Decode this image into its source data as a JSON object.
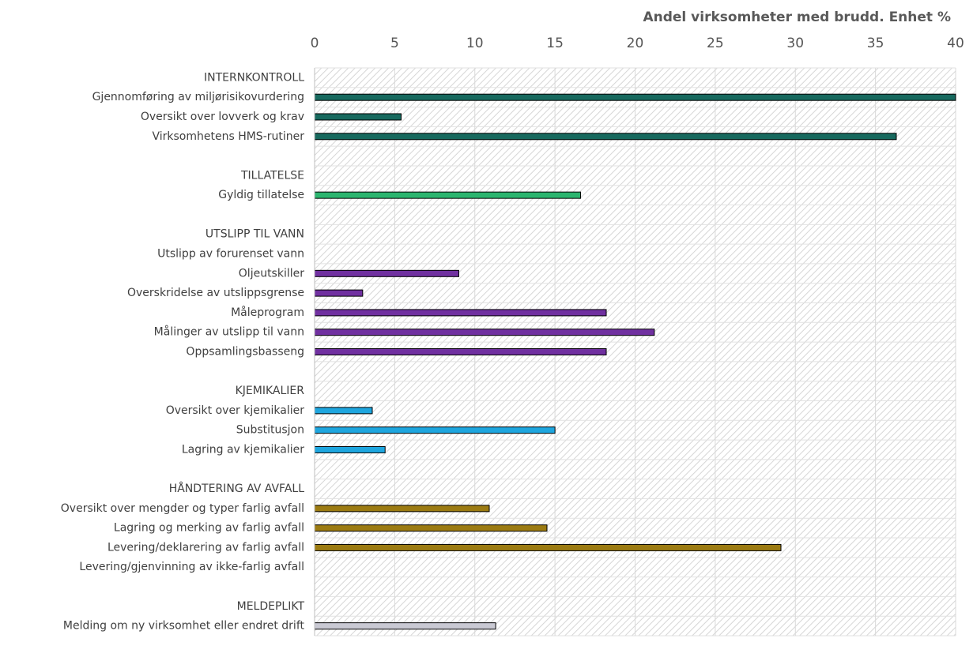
{
  "chart_data": {
    "type": "hbar",
    "title": "Andel virksomheter med brudd. Enhet %",
    "categories": [
      "INTERNKONTROLL",
      "Gjennomføring av miljørisikovurdering",
      "Oversikt over lovverk og krav",
      "Virksomhetens HMS-rutiner",
      null,
      "TILLATELSE",
      "Gyldig tillatelse",
      null,
      "UTSLIPP TIL VANN",
      "Utslipp av forurenset vann",
      "Oljeutskiller",
      "Overskridelse av utslippsgrense",
      "Måleprogram",
      "Målinger av utslipp til vann",
      "Oppsamlingsbasseng",
      null,
      "KJEMIKALIER",
      "Oversikt over kjemikalier",
      "Substitusjon",
      "Lagring av kjemikalier",
      null,
      "HÅNDTERING AV AVFALL",
      "Oversikt over mengder og typer farlig avfall",
      "Lagring og merking av farlig avfall",
      "Levering/deklarering av farlig avfall",
      "Levering/gjenvinning av ikke-farlig avfall",
      null,
      "MELDEPLIKT",
      "Melding om ny virksomhet eller endret drift"
    ],
    "values": [
      null,
      40,
      5.4,
      36.3,
      null,
      null,
      16.6,
      null,
      null,
      null,
      9.0,
      3.0,
      18.2,
      21.2,
      18.2,
      null,
      null,
      3.6,
      15.0,
      4.4,
      null,
      null,
      10.9,
      14.5,
      29.1,
      null,
      null,
      null,
      11.3
    ],
    "colors": [
      null,
      "#17695e",
      "#17695e",
      "#17695e",
      null,
      null,
      "#2bb56f",
      null,
      null,
      null,
      "#7030a0",
      "#7030a0",
      "#7030a0",
      "#7030a0",
      "#7030a0",
      null,
      null,
      "#1ea6df",
      "#1ea6df",
      "#1ea6df",
      null,
      null,
      "#9c7b12",
      "#9c7b12",
      "#9c7b12",
      null,
      null,
      null,
      "#c9c9d3"
    ],
    "xlim": [
      0,
      40
    ],
    "xticks": [
      0,
      5,
      10,
      15,
      20,
      25,
      30,
      35,
      40
    ],
    "grid": true
  }
}
